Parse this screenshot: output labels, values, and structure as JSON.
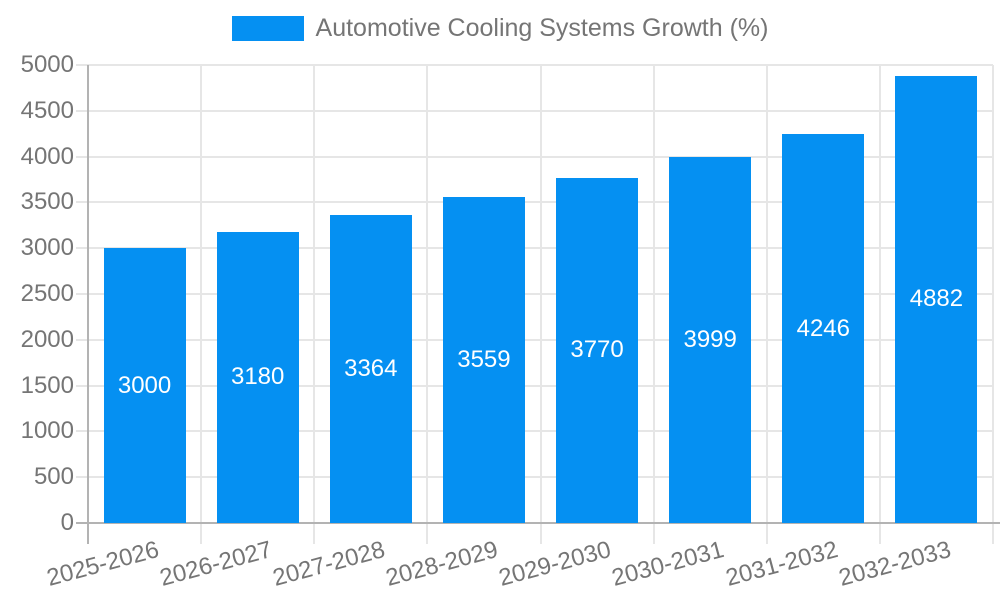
{
  "chart_data": {
    "type": "bar",
    "title": "",
    "legend_label": "Automotive Cooling Systems Growth (%)",
    "legend_position": "top-center",
    "categories": [
      "2025-2026",
      "2026-2027",
      "2027-2028",
      "2028-2029",
      "2029-2030",
      "2030-2031",
      "2031-2032",
      "2032-2033"
    ],
    "series": [
      {
        "name": "Automotive Cooling Systems Growth (%)",
        "values": [
          3000,
          3180,
          3364,
          3559,
          3770,
          3999,
          4246,
          4882
        ]
      }
    ],
    "value_labels": [
      "3000",
      "3180",
      "3364",
      "3559",
      "3770",
      "3999",
      "4246",
      "4882"
    ],
    "xlabel": "",
    "ylabel": "",
    "ylim": [
      0,
      5000
    ],
    "yticks": [
      0,
      500,
      1000,
      1500,
      2000,
      2500,
      3000,
      3500,
      4000,
      4500,
      5000
    ],
    "grid": "horizontal-and-vertical",
    "x_label_rotation_deg": -15
  },
  "colors": {
    "bar": "#0590f2",
    "axis_line": "#b3b3b3",
    "gridline": "#e6e6e6",
    "tick_text": "#757575",
    "bar_label_text": "#ffffff",
    "background": "#ffffff"
  }
}
